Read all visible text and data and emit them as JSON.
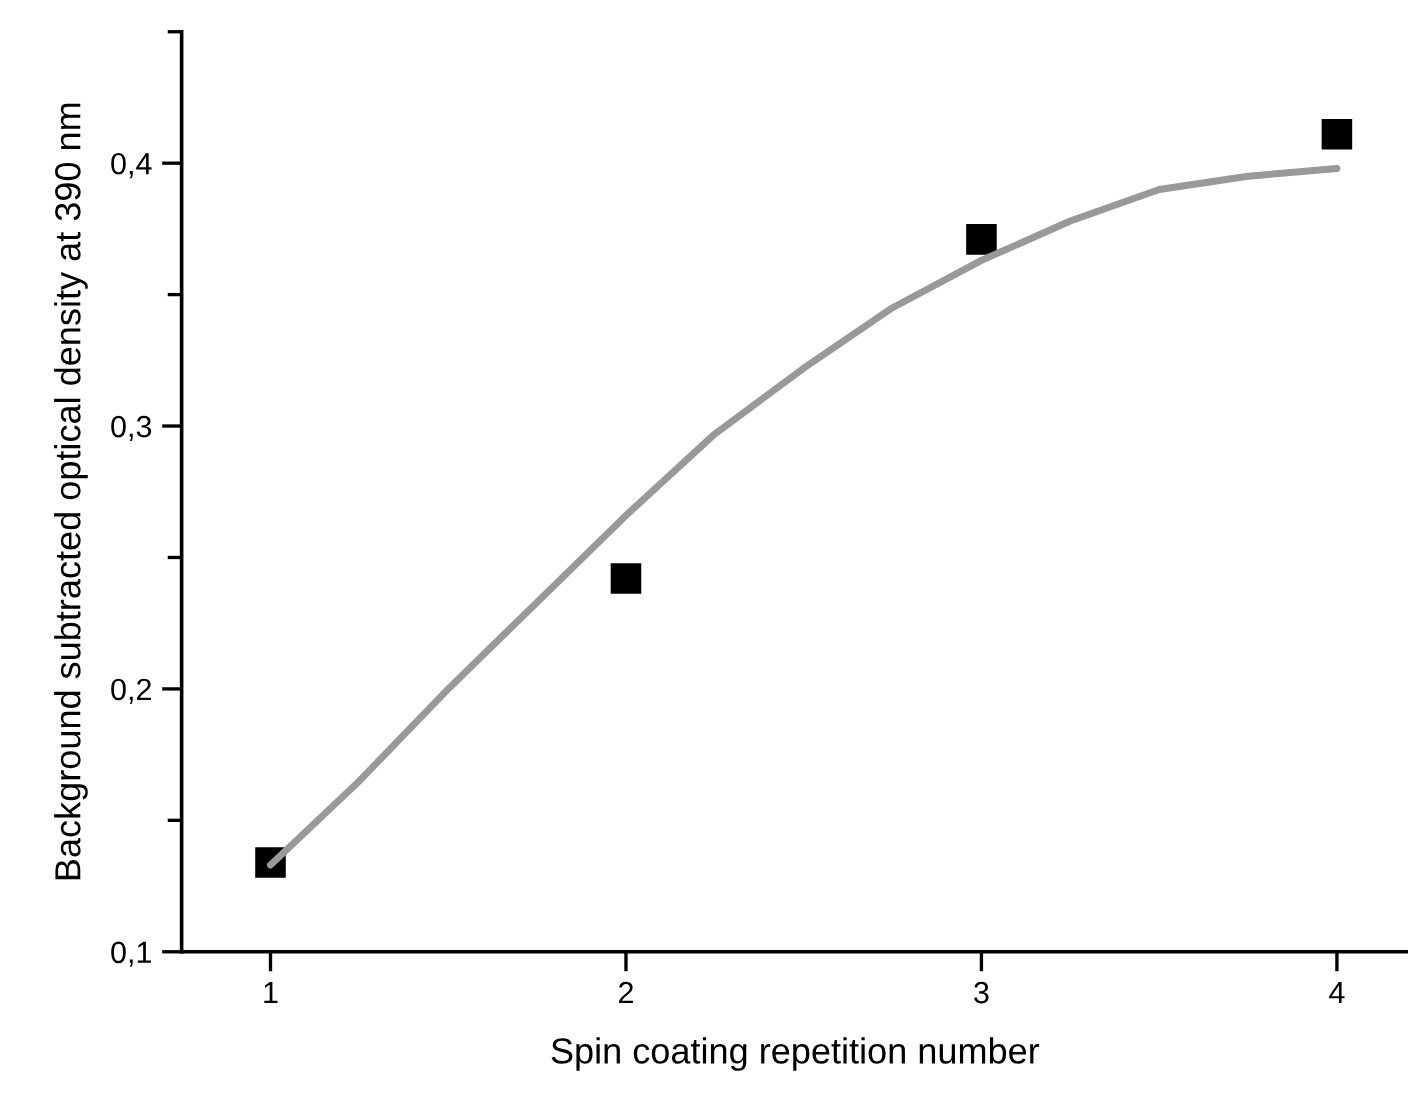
{
  "chart_data": {
    "type": "scatter",
    "xlabel": "Spin coating repetition number",
    "ylabel": "Background subtracted optical density at 390 nm",
    "series": [
      {
        "color": "#000000",
        "marker": "square",
        "x": [
          1,
          2,
          3,
          4
        ],
        "values": [
          0.134,
          0.242,
          0.371,
          0.411
        ]
      },
      {
        "type": "line",
        "color": "#999999",
        "marker": "none",
        "line_style": "solid",
        "x": [
          1,
          1.25,
          1.5,
          1.75,
          2,
          2.25,
          2.5,
          2.75,
          3,
          3.25,
          3.5,
          3.75,
          4
        ],
        "values": [
          0.133,
          0.165,
          0.2,
          0.233,
          0.266,
          0.297,
          0.322,
          0.345,
          0.363,
          0.378,
          0.39,
          0.395,
          0.398
        ]
      }
    ],
    "xlim": [
      0.75,
      4.2
    ],
    "ylim": [
      0.1,
      0.45
    ],
    "xticks": [
      1,
      2,
      3,
      4
    ],
    "yticks": [
      {
        "value": 0.1,
        "label": "0,1"
      },
      {
        "value": 0.2,
        "label": "0,2"
      },
      {
        "value": 0.3,
        "label": "0,3"
      },
      {
        "value": 0.4,
        "label": "0,4"
      }
    ],
    "grid": false,
    "legend": false
  }
}
